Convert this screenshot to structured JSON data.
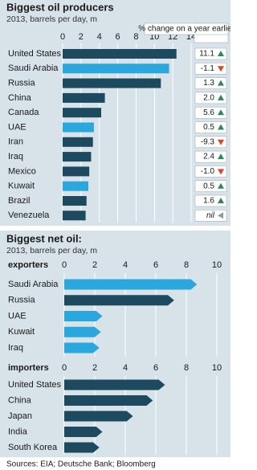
{
  "chart_data": [
    {
      "type": "bar",
      "title": "Biggest oil producers",
      "subtitle": "2013, barrels per day, m",
      "categories": [
        "United States",
        "Saudi Arabia",
        "Russia",
        "China",
        "Canada",
        "UAE",
        "Iran",
        "Iraq",
        "Mexico",
        "Kuwait",
        "Brazil",
        "Venezuela"
      ],
      "values": [
        12.4,
        11.6,
        10.7,
        4.6,
        4.2,
        3.4,
        3.3,
        3.1,
        2.9,
        2.8,
        2.6,
        2.5
      ],
      "colors": [
        "#1d4a5f",
        "#2aa7dc",
        "#1d4a5f",
        "#1d4a5f",
        "#1d4a5f",
        "#2aa7dc",
        "#1d4a5f",
        "#1d4a5f",
        "#1d4a5f",
        "#2aa7dc",
        "#1d4a5f",
        "#1d4a5f"
      ],
      "xlim": [
        0,
        14
      ],
      "xticks": [
        0,
        2,
        4,
        6,
        8,
        10,
        12,
        14
      ],
      "grid": true,
      "bar_shape": "rect",
      "change_header": "% change on a year earlier",
      "change": [
        11.1,
        -1.1,
        1.3,
        2.0,
        5.6,
        0.5,
        -9.3,
        2.4,
        -1.0,
        0.5,
        1.6,
        null
      ],
      "change_labels": [
        "11.1",
        "-1.1",
        "1.3",
        "2.0",
        "5.6",
        "0.5",
        "-9.3",
        "2.4",
        "-1.0",
        "0.5",
        "1.6",
        "nil"
      ],
      "up_color": "#2b8a5a",
      "down_color": "#e0451f",
      "nil_color": "#8a9aa5"
    },
    {
      "type": "bar",
      "title": "Biggest net oil:",
      "subtitle": "2013, barrels per day, m",
      "label": "exporters",
      "categories": [
        "Saudi Arabia",
        "Russia",
        "UAE",
        "Kuwait",
        "Iraq"
      ],
      "values": [
        8.7,
        7.2,
        2.5,
        2.4,
        2.3
      ],
      "colors": [
        "#2aa7dc",
        "#1d4a5f",
        "#2aa7dc",
        "#2aa7dc",
        "#2aa7dc"
      ],
      "xlim": [
        0,
        10
      ],
      "xticks": [
        0,
        2,
        4,
        6,
        8,
        10
      ],
      "grid": true,
      "bar_shape": "arrow"
    },
    {
      "type": "bar",
      "label": "importers",
      "categories": [
        "United States",
        "China",
        "Japan",
        "India",
        "South Korea"
      ],
      "values": [
        6.6,
        5.8,
        4.5,
        2.5,
        2.3
      ],
      "colors": [
        "#1d4a5f",
        "#1d4a5f",
        "#1d4a5f",
        "#1d4a5f",
        "#1d4a5f"
      ],
      "xlim": [
        0,
        10
      ],
      "xticks": [
        0,
        2,
        4,
        6,
        8,
        10
      ],
      "grid": true,
      "bar_shape": "arrow"
    }
  ],
  "source": "Sources: EIA; Deutsche Bank; Bloomberg"
}
